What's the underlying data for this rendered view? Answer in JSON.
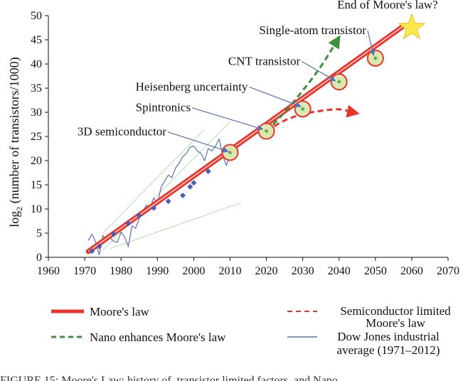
{
  "caption_fragment": "FIGURE 15: Moore's Law: history of, transistor limited factors, and Nano",
  "chart_data": {
    "type": "line",
    "title": "",
    "xlabel": "",
    "ylabel_main": "log",
    "ylabel_sub": "2",
    "ylabel_rest": " (number of transistors/1000)",
    "xlim": [
      1960,
      2070
    ],
    "ylim": [
      0,
      50
    ],
    "xticks": [
      1960,
      1970,
      1980,
      1990,
      2000,
      2010,
      2020,
      2030,
      2040,
      2050,
      2060,
      2070
    ],
    "yticks": [
      0,
      5,
      10,
      15,
      20,
      25,
      30,
      35,
      40,
      45,
      50
    ],
    "grid": false,
    "colors": {
      "moores_law": "#e8342a",
      "nano": "#3f8f3a",
      "semiconductor_limited": "#e8342a",
      "dow_jones": "#5b6fb5",
      "diamonds": "#4a60b8",
      "circle_fill": "#d9e8b0",
      "circle_edge": "#e8342a",
      "star": "#ffe84a",
      "fit_lines": "#b7dcae"
    },
    "series": [
      {
        "name": "Moore's law",
        "style": "solid-thick",
        "x": [
          1971,
          2058
        ],
        "y": [
          1.2,
          48
        ]
      },
      {
        "name": "Nano enhances Moore's law",
        "style": "dashed",
        "x": [
          2020,
          2025,
          2030,
          2035,
          2040
        ],
        "y": [
          26.1,
          30,
          34.5,
          39.5,
          45.5
        ]
      },
      {
        "name": "Semiconductor limited Moore's law",
        "style": "dashed",
        "x": [
          2020,
          2025,
          2030,
          2035,
          2040,
          2045
        ],
        "y": [
          26.1,
          28.3,
          29.6,
          30.3,
          30.6,
          29.8
        ]
      },
      {
        "name": "Dow Jones industrial average (1971–2012)",
        "style": "thin",
        "x": [
          1971,
          1972,
          1973,
          1974,
          1975,
          1976,
          1977,
          1978,
          1979,
          1980,
          1981,
          1982,
          1983,
          1984,
          1985,
          1986,
          1987,
          1988,
          1989,
          1990,
          1991,
          1992,
          1993,
          1994,
          1995,
          1996,
          1997,
          1998,
          1999,
          2000,
          2001,
          2002,
          2003,
          2004,
          2005,
          2006,
          2007,
          2008,
          2009,
          2010,
          2011,
          2012
        ],
        "y": [
          3.5,
          4.8,
          3.2,
          0.5,
          4.5,
          3.6,
          4.0,
          3.3,
          3.1,
          5.2,
          4.2,
          2.2,
          6.5,
          6.0,
          8.0,
          9.5,
          10.8,
          10.2,
          12.3,
          11.0,
          14.5,
          15.8,
          17.0,
          16.5,
          18.5,
          19.5,
          20.8,
          21.5,
          22.8,
          23.0,
          22.0,
          21.5,
          20.0,
          22.5,
          22.0,
          23.0,
          24.5,
          21.0,
          19.0,
          21.5,
          23.0,
          22.5
        ]
      }
    ],
    "historical_points": {
      "x": [
        1972,
        1974,
        1978,
        1982,
        1985,
        1989,
        1993,
        1997,
        1999,
        2000,
        2004
      ],
      "y": [
        1.3,
        2.3,
        4.8,
        7.0,
        8.6,
        10.2,
        11.6,
        12.8,
        14.6,
        15.4,
        17.8
      ]
    },
    "fit_lines": [
      {
        "x": [
          1975,
          2003
        ],
        "y": [
          5,
          26.5
        ]
      },
      {
        "x": [
          1975,
          2010
        ],
        "y": [
          1.5,
          28
        ]
      },
      {
        "x": [
          1977,
          2013
        ],
        "y": [
          1.8,
          11.3
        ]
      }
    ],
    "milestones": [
      {
        "x": 2010,
        "y": 21.7
      },
      {
        "x": 2020,
        "y": 26.1
      },
      {
        "x": 2030,
        "y": 30.7
      },
      {
        "x": 2040,
        "y": 36.3
      },
      {
        "x": 2050,
        "y": 41.2
      }
    ],
    "end_star": {
      "x": 2060,
      "y": 47.5
    },
    "annotations": [
      {
        "text": "End of Moore's law?",
        "tx": 2039.5,
        "ty": 51.5,
        "arrow": null
      },
      {
        "text": "Single-atom transistor",
        "tx": 2018,
        "ty": 46.2,
        "arrow": [
          2049.5,
          41.8
        ]
      },
      {
        "text": "CNT transistor",
        "tx": 2009.5,
        "ty": 39.8,
        "arrow": [
          2039,
          36.5
        ]
      },
      {
        "text": "Heisenberg uncertainty",
        "tx": 1984,
        "ty": 34.5,
        "arrow": [
          2029.5,
          31.2
        ]
      },
      {
        "text": "Spintronics",
        "tx": 1984,
        "ty": 30.2,
        "arrow": [
          2019,
          26.5
        ]
      },
      {
        "text": "3D semiconductor",
        "tx": 1968,
        "ty": 25.2,
        "arrow": [
          2009.5,
          21.9
        ]
      }
    ],
    "legend": {
      "placement": "bottom",
      "items": [
        {
          "label": "Moore's law",
          "style": "solid-thick",
          "color": "#e8342a"
        },
        {
          "label": "Nano enhances Moore's law",
          "style": "dashed",
          "color": "#3f8f3a"
        },
        {
          "label_line1": "Semiconductor limited",
          "label_line2": "Moore's law",
          "style": "dashed",
          "color": "#e8342a"
        },
        {
          "label_line1": "Dow Jones industrial",
          "label_line2": "average (1971–2012)",
          "style": "thin",
          "color": "#5b6fb5"
        }
      ]
    }
  }
}
